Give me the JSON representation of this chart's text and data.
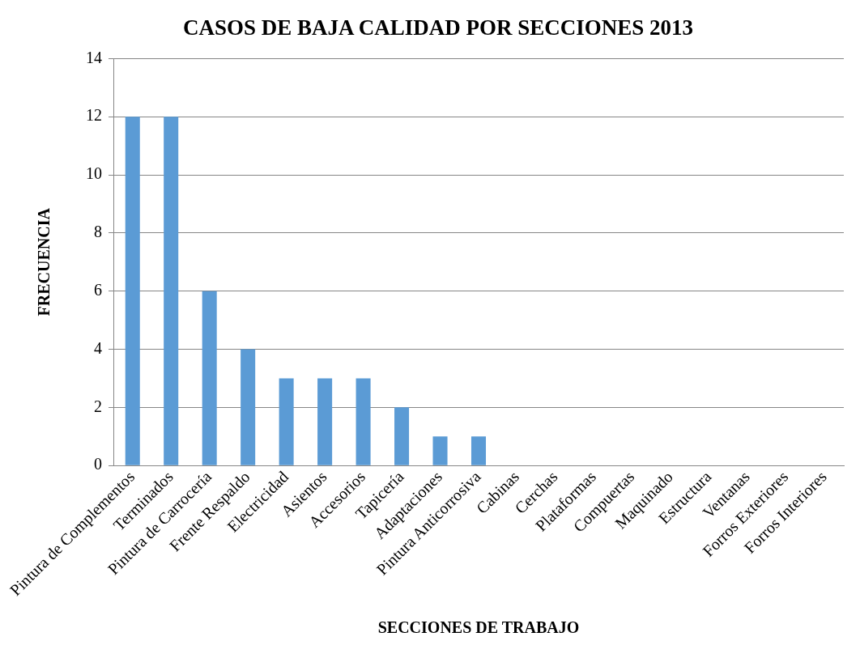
{
  "chart_data": {
    "type": "bar",
    "title": "CASOS DE BAJA CALIDAD POR SECCIONES 2013",
    "xlabel": "SECCIONES DE TRABAJO",
    "ylabel": "FRECUENCIA",
    "categories": [
      "Pintura de Complementos",
      "Terminados",
      "Pintura de Carrocería",
      "Frente Respaldo",
      "Electricidad",
      "Asientos",
      "Accesorios",
      "Tapicería",
      "Adaptaciones",
      "Pintura Anticorrosiva",
      "Cabinas",
      "Cerchas",
      "Plataformas",
      "Compuertas",
      "Maquinado",
      "Estructura",
      "Ventanas",
      "Forros Exteriores",
      "Forros Interiores"
    ],
    "values": [
      12,
      12,
      6,
      4,
      3,
      3,
      3,
      2,
      1,
      1,
      0,
      0,
      0,
      0,
      0,
      0,
      0,
      0,
      0
    ],
    "color": "#5b9bd5",
    "ylim": [
      0,
      14
    ],
    "yticks": [
      0,
      2,
      4,
      6,
      8,
      10,
      12,
      14
    ],
    "grid": "y",
    "legend": false
  }
}
